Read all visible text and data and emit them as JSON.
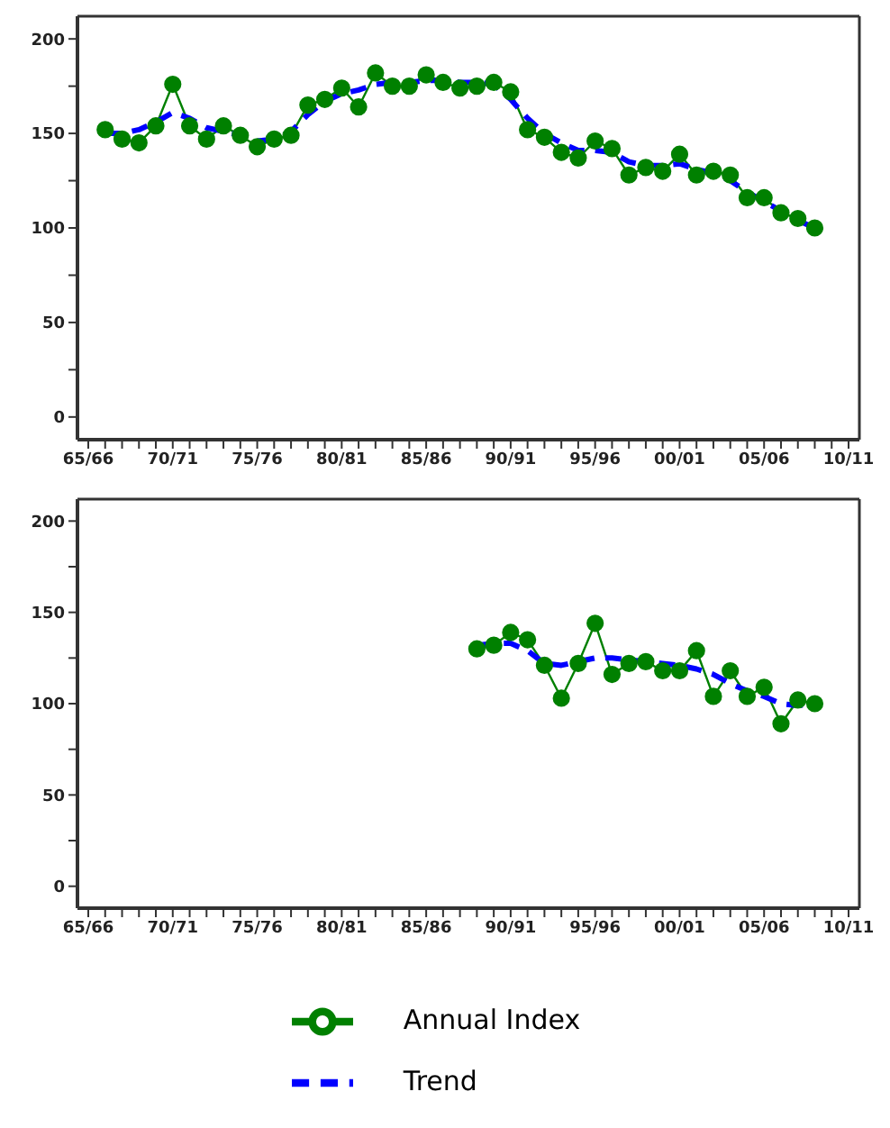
{
  "chart_data": [
    {
      "type": "line",
      "categories": [
        "65/66",
        null,
        null,
        null,
        null,
        "70/71",
        null,
        null,
        null,
        null,
        "75/76",
        null,
        null,
        null,
        null,
        "80/81",
        null,
        null,
        null,
        null,
        "85/86",
        null,
        null,
        null,
        null,
        "90/91",
        null,
        null,
        null,
        null,
        "95/96",
        null,
        null,
        null,
        null,
        "00/01",
        null,
        null,
        null,
        null,
        "05/06",
        null,
        null,
        null,
        null,
        "10/11"
      ],
      "series": [
        {
          "color": "#008000",
          "marker": "circle",
          "line_style": "solid",
          "values": [
            null,
            152,
            147,
            145,
            154,
            176,
            154,
            147,
            154,
            149,
            143,
            147,
            149,
            165,
            168,
            174,
            164,
            182,
            175,
            175,
            181,
            177,
            174,
            175,
            177,
            172,
            152,
            148,
            140,
            137,
            146,
            142,
            128,
            132,
            130,
            139,
            128,
            130,
            128,
            116,
            116,
            108,
            105,
            100,
            null,
            null
          ]
        },
        {
          "color": "#0000ff",
          "marker": "none",
          "line_style": "dashed",
          "values": [
            null,
            150,
            150,
            152,
            156,
            161,
            158,
            153,
            151,
            149,
            146,
            147,
            151,
            160,
            167,
            171,
            173,
            176,
            177,
            177,
            178,
            178,
            177,
            177,
            176,
            168,
            158,
            150,
            145,
            141,
            141,
            140,
            135,
            133,
            133,
            134,
            131,
            129,
            125,
            119,
            114,
            109,
            104,
            100,
            null,
            null
          ]
        }
      ],
      "ylim": [
        -12,
        212
      ],
      "yticks": [
        0,
        {
          "value": 25,
          "label": null
        },
        50,
        {
          "value": 75,
          "label": null
        },
        100,
        {
          "value": 125,
          "label": null
        },
        150,
        {
          "value": 175,
          "label": null
        },
        200
      ]
    },
    {
      "type": "line",
      "categories": [
        "65/66",
        null,
        null,
        null,
        null,
        "70/71",
        null,
        null,
        null,
        null,
        "75/76",
        null,
        null,
        null,
        null,
        "80/81",
        null,
        null,
        null,
        null,
        "85/86",
        null,
        null,
        null,
        null,
        "90/91",
        null,
        null,
        null,
        null,
        "95/96",
        null,
        null,
        null,
        null,
        "00/01",
        null,
        null,
        null,
        null,
        "05/06",
        null,
        null,
        null,
        null,
        "10/11"
      ],
      "series": [
        {
          "name": "Annual Index",
          "color": "#008000",
          "marker": "circle",
          "line_style": "solid",
          "values": [
            null,
            null,
            null,
            null,
            null,
            null,
            null,
            null,
            null,
            null,
            null,
            null,
            null,
            null,
            null,
            null,
            null,
            null,
            null,
            null,
            null,
            null,
            null,
            130,
            132,
            139,
            135,
            121,
            103,
            122,
            144,
            116,
            122,
            123,
            118,
            118,
            129,
            104,
            118,
            104,
            109,
            89,
            102,
            100,
            null,
            null
          ]
        },
        {
          "name": "Trend",
          "color": "#0000ff",
          "marker": "none",
          "line_style": "dashed",
          "values": [
            null,
            null,
            null,
            null,
            null,
            null,
            null,
            null,
            null,
            null,
            null,
            null,
            null,
            null,
            null,
            null,
            null,
            null,
            null,
            null,
            null,
            null,
            null,
            132,
            133,
            133,
            129,
            122,
            121,
            123,
            125,
            125,
            124,
            123,
            122,
            121,
            119,
            116,
            111,
            107,
            104,
            100,
            99,
            100,
            null,
            null
          ]
        }
      ],
      "ylim": [
        -12,
        212
      ],
      "yticks": [
        0,
        {
          "value": 25,
          "label": null
        },
        50,
        {
          "value": 75,
          "label": null
        },
        100,
        {
          "value": 125,
          "label": null
        },
        150,
        {
          "value": 175,
          "label": null
        },
        200
      ],
      "legend": "bottom"
    }
  ]
}
